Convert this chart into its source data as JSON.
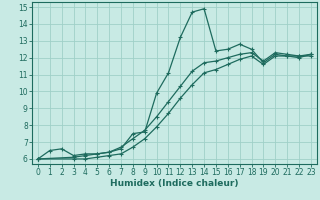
{
  "xlabel": "Humidex (Indice chaleur)",
  "background_color": "#c8eae4",
  "grid_color": "#a0d0c8",
  "line_color": "#1e6b5e",
  "xlim": [
    -0.5,
    23.5
  ],
  "ylim": [
    5.7,
    15.3
  ],
  "xticks": [
    0,
    1,
    2,
    3,
    4,
    5,
    6,
    7,
    8,
    9,
    10,
    11,
    12,
    13,
    14,
    15,
    16,
    17,
    18,
    19,
    20,
    21,
    22,
    23
  ],
  "yticks": [
    6,
    7,
    8,
    9,
    10,
    11,
    12,
    13,
    14,
    15
  ],
  "line1_x": [
    0,
    1,
    2,
    3,
    4,
    5,
    6,
    7,
    8,
    9,
    10,
    11,
    12,
    13,
    14,
    15,
    16,
    17,
    18,
    19,
    20,
    21,
    22,
    23
  ],
  "line1_y": [
    6.0,
    6.5,
    6.6,
    6.2,
    6.3,
    6.3,
    6.4,
    6.6,
    7.5,
    7.6,
    9.9,
    11.1,
    13.2,
    14.7,
    14.9,
    12.4,
    12.5,
    12.8,
    12.5,
    11.7,
    12.2,
    12.1,
    12.1,
    12.1
  ],
  "line2_x": [
    0,
    3,
    4,
    5,
    6,
    7,
    8,
    9,
    10,
    11,
    12,
    13,
    14,
    15,
    16,
    17,
    18,
    19,
    20,
    21,
    22,
    23
  ],
  "line2_y": [
    6.0,
    6.1,
    6.2,
    6.3,
    6.4,
    6.7,
    7.2,
    7.7,
    8.5,
    9.4,
    10.3,
    11.2,
    11.7,
    11.8,
    12.0,
    12.2,
    12.3,
    11.8,
    12.3,
    12.2,
    12.1,
    12.2
  ],
  "line3_x": [
    0,
    3,
    4,
    5,
    6,
    7,
    8,
    9,
    10,
    11,
    12,
    13,
    14,
    15,
    16,
    17,
    18,
    19,
    20,
    21,
    22,
    23
  ],
  "line3_y": [
    6.0,
    6.0,
    6.0,
    6.1,
    6.2,
    6.3,
    6.7,
    7.2,
    7.9,
    8.7,
    9.6,
    10.4,
    11.1,
    11.3,
    11.6,
    11.9,
    12.1,
    11.6,
    12.1,
    12.1,
    12.0,
    12.2
  ]
}
